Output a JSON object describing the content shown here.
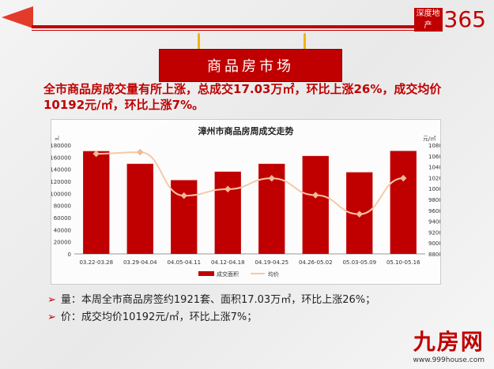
{
  "header": {
    "logo_text": "深度地产",
    "logo_number": "365",
    "banner": "商品房市场"
  },
  "headline": "全市商品房成交量有所上涨，总成交17.03万㎡，环比上涨26%，成交均价10192元/㎡，环比上涨7%。",
  "bullets": [
    {
      "marker": "➢",
      "text": "量：本周全市商品房签约1921套、面积17.03万㎡，环比上涨26%；"
    },
    {
      "marker": "➢",
      "text": "价：成交均价10192元/㎡，环比上涨7%；"
    }
  ],
  "footer": {
    "brand": "九房网",
    "url": "www.999house.com"
  },
  "colors": {
    "bar": "#c00000",
    "line": "#f5c9a8",
    "accent": "#c00000"
  },
  "chart_data": {
    "type": "bar+line",
    "title": "漳州市商品房周成交走势",
    "ylabel": "㎡",
    "y2label": "元/㎡",
    "categories": [
      "03.22-03.28",
      "03.29-04.04",
      "04.05-04.11",
      "04.12-04.18",
      "04.19-04.25",
      "04.26-05.02",
      "05.03-05.09",
      "05.10-05.16"
    ],
    "ylim": [
      0,
      180000
    ],
    "yticks": [
      0,
      20000,
      40000,
      60000,
      80000,
      100000,
      120000,
      140000,
      160000,
      180000
    ],
    "y2lim": [
      8800,
      10800
    ],
    "y2ticks": [
      8800,
      9000,
      9200,
      9400,
      9600,
      9800,
      10000,
      10200,
      10400,
      10600,
      10800
    ],
    "series": [
      {
        "name": "成交面积",
        "type": "bar",
        "axis": "left",
        "values": [
          170000,
          149000,
          122000,
          136000,
          149000,
          162000,
          135000,
          170300
        ]
      },
      {
        "name": "均价",
        "type": "line",
        "axis": "right",
        "values": [
          10640,
          10670,
          9870,
          9990,
          10190,
          9880,
          9530,
          10192
        ]
      }
    ],
    "legend": "bottom",
    "grid": false
  }
}
